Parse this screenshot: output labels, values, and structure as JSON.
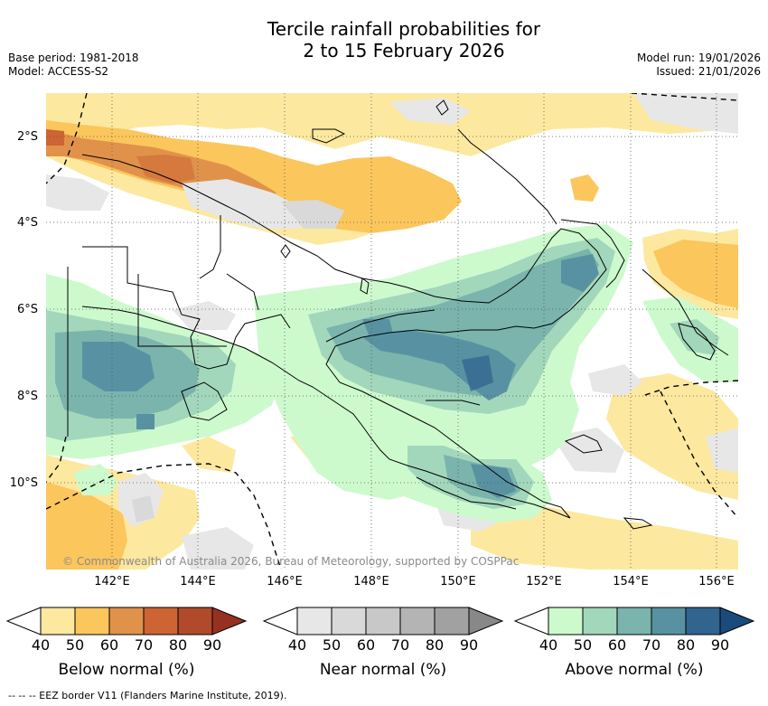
{
  "title_line1": "Tercile rainfall probabilities for",
  "title_line2": "2 to 15 February 2026",
  "base_period": "Base period: 1981-2018",
  "model": "Model: ACCESS-S2",
  "model_run": "Model run: 19/01/2026",
  "issued": "Issued: 21/01/2026",
  "copyright": "© Commonwealth of Australia 2026, Bureau of Meteorology, supported by COSPPac",
  "eez_note": "--  --  -- EEZ border V11 (Flanders Marine Institute, 2019).",
  "lat_labels": [
    "2°S",
    "4°S",
    "6°S",
    "8°S",
    "10°S"
  ],
  "lon_labels": [
    "142°E",
    "144°E",
    "146°E",
    "148°E",
    "150°E",
    "152°E",
    "154°E",
    "156°E"
  ],
  "colorbars": [
    {
      "label": "Below normal (%)",
      "ticks": [
        "40",
        "50",
        "60",
        "70",
        "80",
        "90"
      ],
      "colors": [
        "#fde89f",
        "#fbc65c",
        "#e1924a",
        "#cc6434",
        "#b14a2a",
        "#963121"
      ]
    },
    {
      "label": "Near normal (%)",
      "ticks": [
        "40",
        "50",
        "60",
        "70",
        "80",
        "90"
      ],
      "colors": [
        "#e7e7e7",
        "#d9d9d9",
        "#c8c8c8",
        "#b4b4b4",
        "#a1a1a1",
        "#888888"
      ]
    },
    {
      "label": "Above normal (%)",
      "ticks": [
        "40",
        "50",
        "60",
        "70",
        "80",
        "90"
      ],
      "colors": [
        "#cdfacd",
        "#a2d7bb",
        "#7ab4ac",
        "#5892a2",
        "#31648f",
        "#1b4a7d"
      ]
    }
  ]
}
